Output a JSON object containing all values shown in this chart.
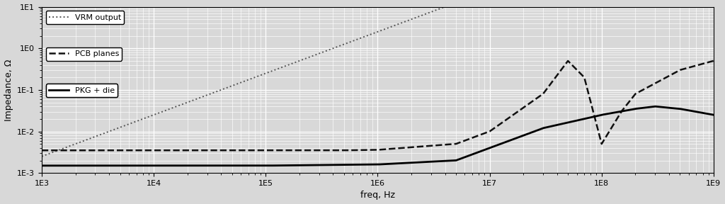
{
  "xlabel": "freq, Hz",
  "ylabel": "Impedance, Ω",
  "xlim": [
    1000.0,
    1000000000.0
  ],
  "ylim": [
    0.001,
    10.0
  ],
  "legend": [
    {
      "label": "VRM output",
      "linestyle": "dotted",
      "color": "#555555",
      "linewidth": 1.4
    },
    {
      "label": "PCB planes",
      "linestyle": "dashed",
      "color": "#111111",
      "linewidth": 1.8
    },
    {
      "label": "PKG + die",
      "linestyle": "solid",
      "color": "#000000",
      "linewidth": 2.0
    }
  ],
  "bg_color": "#d8d8d8",
  "grid_major_color": "#ffffff",
  "grid_minor_color": "#ffffff",
  "grid_major_lw": 0.9,
  "grid_minor_lw": 0.45,
  "tick_labelsize": 8,
  "axis_labelsize": 9
}
